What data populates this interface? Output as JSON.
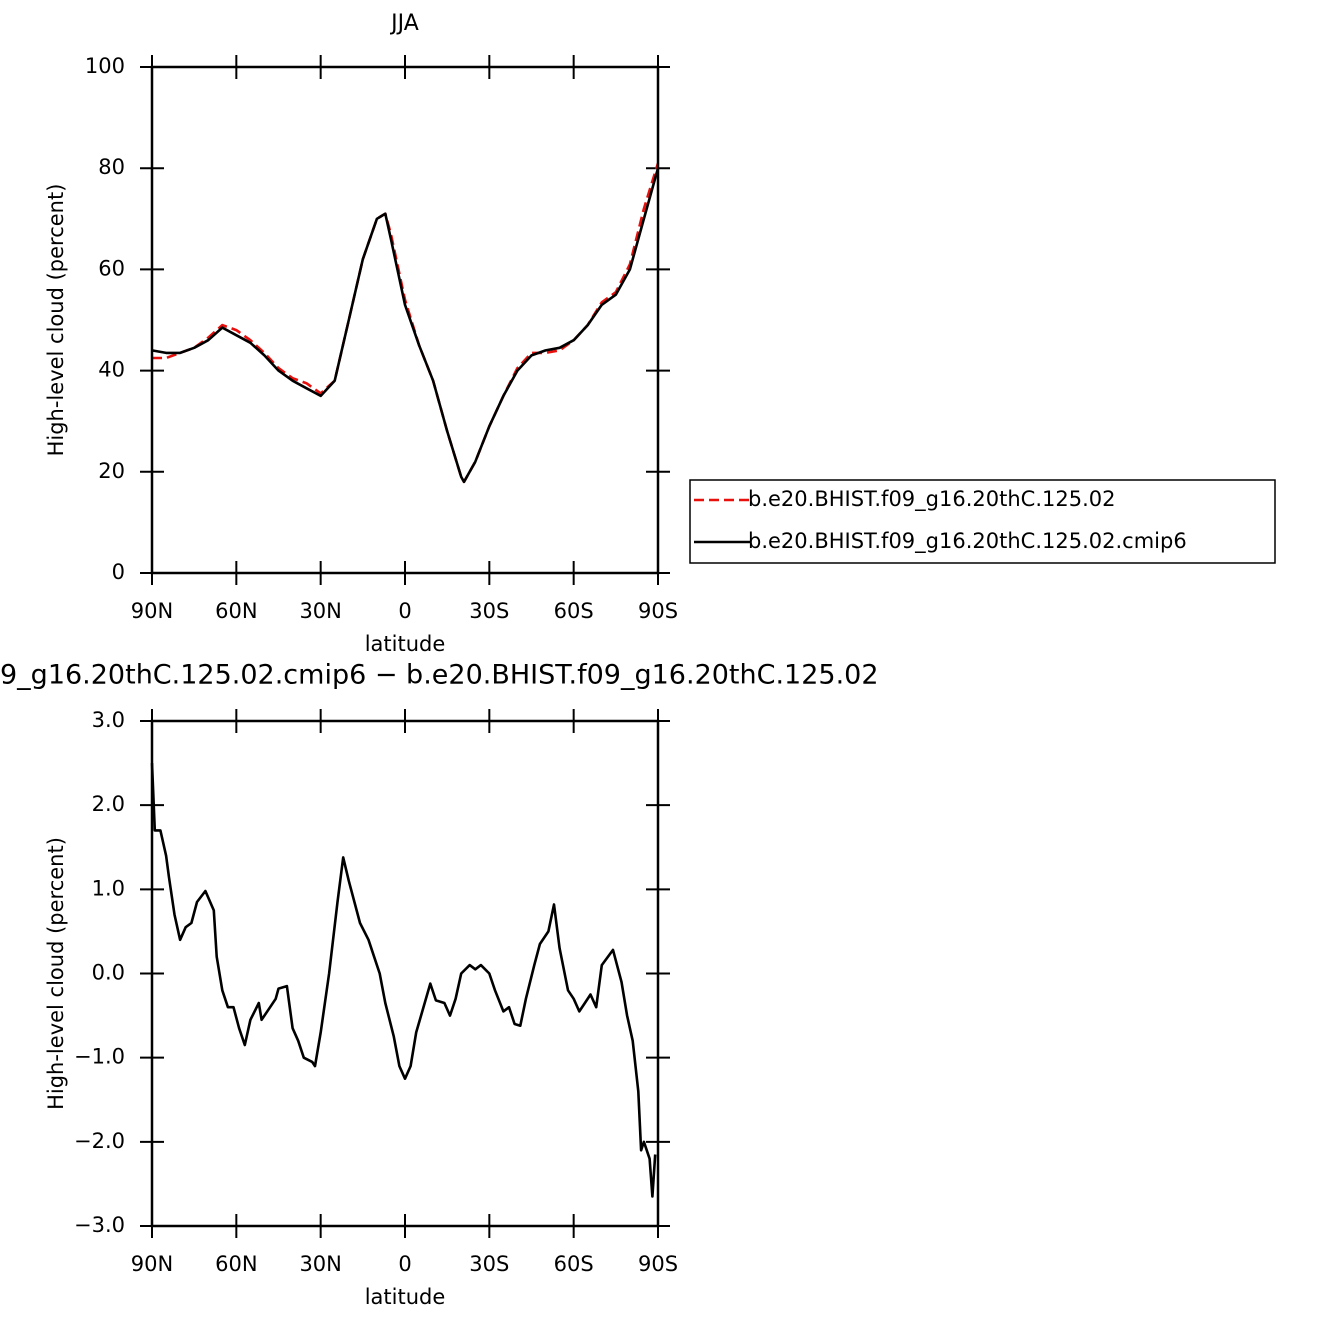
{
  "chart_data": [
    {
      "type": "line",
      "title": "JJA",
      "xlabel": "latitude",
      "ylabel": "High-level cloud (percent)",
      "x": [
        90,
        85,
        80,
        75,
        70,
        65,
        60,
        55,
        50,
        45,
        40,
        35,
        30,
        25,
        20,
        15,
        10,
        7,
        5,
        0,
        -5,
        -10,
        -15,
        -20,
        -21,
        -25,
        -30,
        -35,
        -40,
        -45,
        -50,
        -55,
        -60,
        -65,
        -70,
        -75,
        -80,
        -85,
        -90
      ],
      "series": [
        {
          "name": "b.e20.BHIST.f09_g16.20thC.125.02",
          "color": "#e8100c",
          "dash": true,
          "values": [
            42.5,
            42.5,
            43.5,
            44.5,
            46.5,
            49,
            48,
            46,
            43.5,
            40.5,
            38.5,
            37.5,
            35.5,
            38,
            50,
            62,
            70,
            71,
            67,
            54,
            45,
            38,
            28,
            19,
            18,
            22,
            29,
            35,
            40.5,
            43.5,
            43.5,
            44,
            46,
            49,
            53.5,
            55.5,
            61,
            72,
            81
          ]
        },
        {
          "name": "b.e20.BHIST.f09_g16.20thC.125.02.cmip6",
          "color": "#000000",
          "dash": false,
          "values": [
            44,
            43.5,
            43.5,
            44.5,
            46,
            48.5,
            47,
            45.5,
            43,
            40,
            38,
            36.5,
            35,
            38,
            50,
            62,
            70,
            71,
            66,
            53,
            45,
            38,
            28,
            19,
            18,
            22,
            29,
            35,
            40,
            43,
            44,
            44.5,
            46,
            49,
            53,
            55,
            60,
            70,
            80
          ]
        }
      ],
      "xlim": [
        90,
        -90
      ],
      "xticks": [
        {
          "value": 90,
          "label": "90N"
        },
        {
          "value": 60,
          "label": "60N"
        },
        {
          "value": 30,
          "label": "30N"
        },
        0,
        {
          "value": -30,
          "label": "30S"
        },
        {
          "value": -60,
          "label": "60S"
        },
        {
          "value": -90,
          "label": "90S"
        }
      ],
      "ylim": [
        0,
        100
      ],
      "yticks": [
        0,
        20,
        40,
        60,
        80,
        100
      ],
      "legend": "right"
    },
    {
      "type": "line",
      "title": "9_g16.20thC.125.02.cmip6 − b.e20.BHIST.f09_g16.20thC.125.02",
      "xlabel": "latitude",
      "ylabel": "High-level cloud (percent)",
      "x": [
        90,
        89,
        87,
        85,
        84,
        82,
        80,
        78,
        76,
        74,
        71,
        68,
        67,
        65,
        63,
        61,
        59,
        57,
        55,
        52,
        51,
        48,
        46,
        45,
        42,
        40,
        38,
        36,
        33,
        32,
        30,
        27,
        24,
        22,
        20,
        16,
        13,
        11,
        9,
        7,
        4,
        2,
        0,
        -2,
        -4,
        -7,
        -9,
        -11,
        -14,
        -16,
        -18,
        -20,
        -23,
        -25,
        -27,
        -30,
        -32,
        -35,
        -37,
        -39,
        -41,
        -43,
        -46,
        -48,
        -51,
        -53,
        -55,
        -58,
        -60,
        -62,
        -64,
        -66,
        -68,
        -70,
        -74,
        -77,
        -79,
        -81,
        -83,
        -84,
        -85,
        -87,
        -88,
        -89
      ],
      "values": [
        2.5,
        1.7,
        1.7,
        1.4,
        1.15,
        0.7,
        0.4,
        0.55,
        0.6,
        0.85,
        0.98,
        0.75,
        0.2,
        -0.2,
        -0.4,
        -0.4,
        -0.65,
        -0.85,
        -0.55,
        -0.35,
        -0.55,
        -0.4,
        -0.3,
        -0.18,
        -0.15,
        -0.65,
        -0.8,
        -1.0,
        -1.05,
        -1.1,
        -0.7,
        0,
        0.85,
        1.38,
        1.1,
        0.6,
        0.4,
        0.2,
        0,
        -0.35,
        -0.75,
        -1.1,
        -1.25,
        -1.1,
        -0.7,
        -0.35,
        -0.12,
        -0.32,
        -0.35,
        -0.5,
        -0.3,
        0,
        0.1,
        0.05,
        0.1,
        0,
        -0.2,
        -0.45,
        -0.4,
        -0.6,
        -0.62,
        -0.3,
        0.1,
        0.35,
        0.5,
        0.82,
        0.3,
        -0.2,
        -0.3,
        -0.45,
        -0.35,
        -0.25,
        -0.4,
        0.1,
        0.28,
        -0.1,
        -0.5,
        -0.8,
        -1.4,
        -2.1,
        -2.0,
        -2.2,
        -2.65,
        -2.15
      ],
      "color": "#000000",
      "xlim": [
        90,
        -90
      ],
      "xticks": [
        {
          "value": 90,
          "label": "90N"
        },
        {
          "value": 60,
          "label": "60N"
        },
        {
          "value": 30,
          "label": "30N"
        },
        0,
        {
          "value": -30,
          "label": "30S"
        },
        {
          "value": -60,
          "label": "60S"
        },
        {
          "value": -90,
          "label": "90S"
        }
      ],
      "ylim": [
        -3,
        3
      ],
      "yticks": [
        {
          "value": -3,
          "label": "−3.0"
        },
        {
          "value": -2,
          "label": "−2.0"
        },
        {
          "value": -1,
          "label": "−1.0"
        },
        {
          "value": 0,
          "label": "0.0"
        },
        {
          "value": 1,
          "label": "1.0"
        },
        {
          "value": 2,
          "label": "2.0"
        },
        {
          "value": 3,
          "label": "3.0"
        }
      ]
    }
  ]
}
